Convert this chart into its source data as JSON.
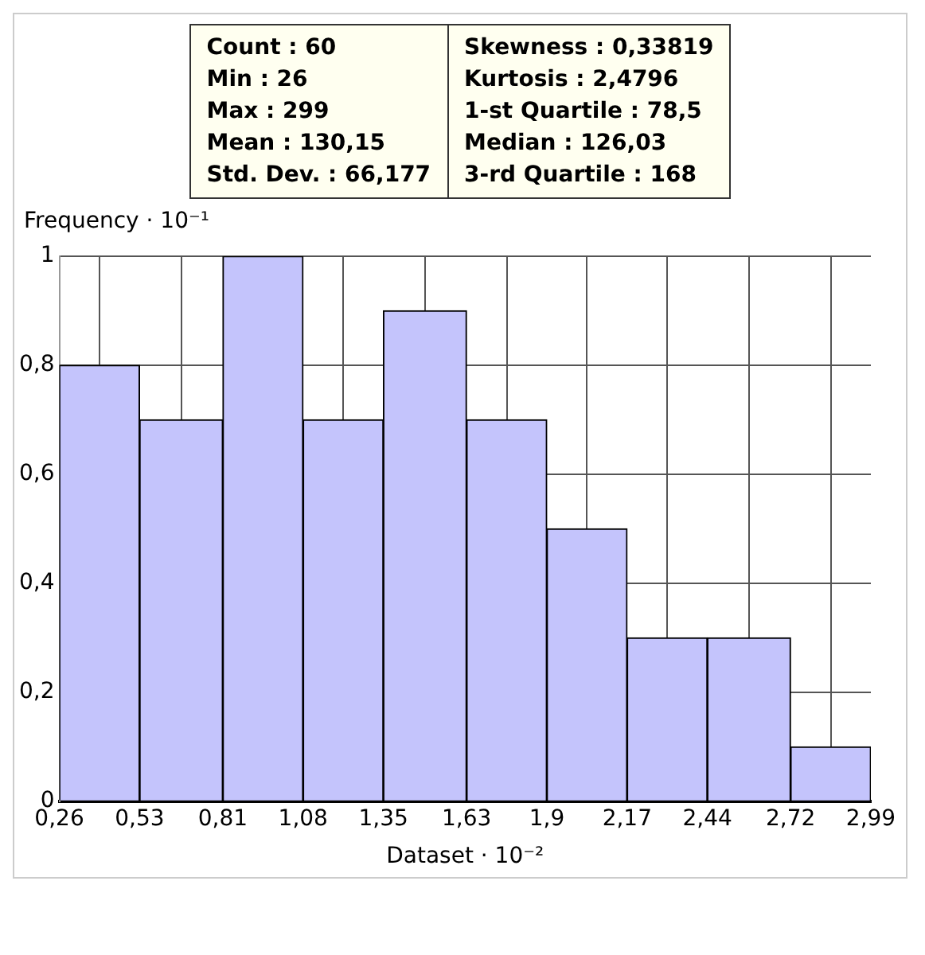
{
  "chart_data": {
    "type": "histogram",
    "xlabel": "Dataset · 10⁻²",
    "ylabel": "Frequency · 10⁻¹",
    "bins": [
      0.26,
      0.53,
      0.81,
      1.08,
      1.35,
      1.63,
      1.9,
      2.17,
      2.44,
      2.72,
      2.99
    ],
    "values": [
      0.8,
      0.7,
      1.0,
      0.7,
      0.9,
      0.7,
      0.5,
      0.3,
      0.3,
      0.1
    ],
    "color": "#c4c4fc",
    "xlim": [
      0.26,
      2.99
    ],
    "xticks": [
      {
        "value": 0.26,
        "label": "0,26"
      },
      {
        "value": 0.53,
        "label": "0,53"
      },
      {
        "value": 0.81,
        "label": "0,81"
      },
      {
        "value": 1.08,
        "label": "1,08"
      },
      {
        "value": 1.35,
        "label": "1,35"
      },
      {
        "value": 1.63,
        "label": "1,63"
      },
      {
        "value": 1.9,
        "label": "1,9"
      },
      {
        "value": 2.17,
        "label": "2,17"
      },
      {
        "value": 2.44,
        "label": "2,44"
      },
      {
        "value": 2.72,
        "label": "2,72"
      },
      {
        "value": 2.99,
        "label": "2,99"
      }
    ],
    "ylim": [
      0,
      1
    ],
    "yticks": [
      0,
      {
        "value": 0.2,
        "label": "0,2"
      },
      {
        "value": 0.4,
        "label": "0,4"
      },
      {
        "value": 0.6,
        "label": "0,6"
      },
      {
        "value": 0.8,
        "label": "0,8"
      },
      1
    ],
    "grid": true,
    "annotations": [
      "Count : 60",
      "Min : 26",
      "Max : 299",
      "Mean : 130,15",
      "Std. Dev. : 66,177",
      "Skewness : 0,33819",
      "Kurtosis : 2,4796",
      "1-st Quartile : 78,5",
      "Median : 126,03",
      "3-rd Quartile : 168"
    ]
  }
}
